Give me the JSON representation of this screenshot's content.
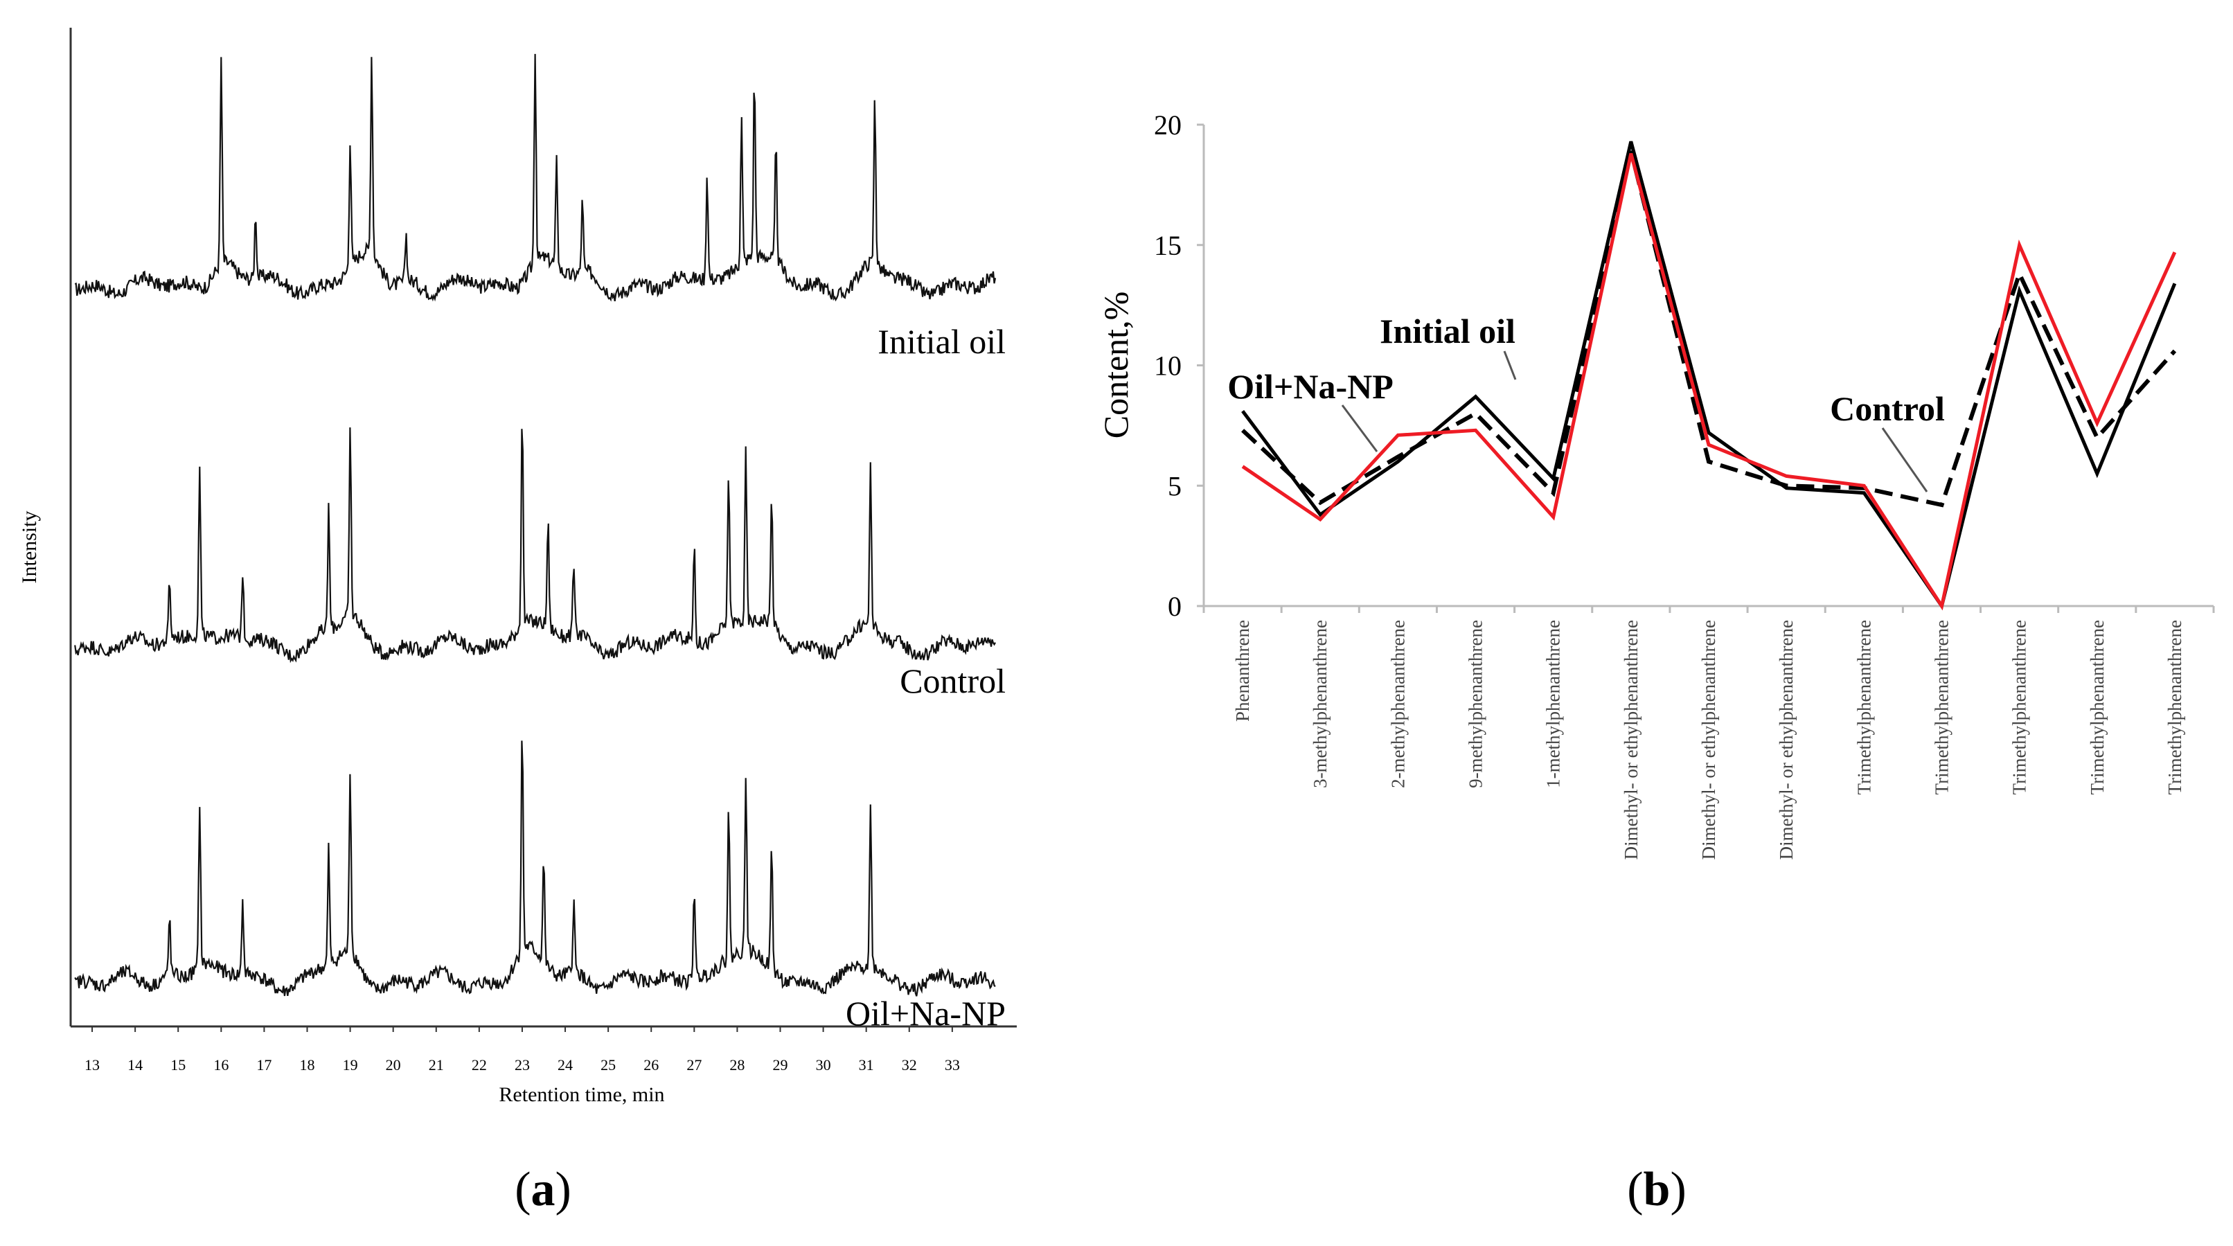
{
  "panels": {
    "a": {
      "caption_open": "(",
      "caption_letter": "a",
      "caption_close": ")"
    },
    "b": {
      "caption_open": "(",
      "caption_letter": "b",
      "caption_close": ")"
    }
  },
  "chart_data": [
    {
      "id": "a",
      "type": "line",
      "title": "",
      "xlabel": "Retention time, min",
      "ylabel": "Intensity",
      "xlim": [
        12.5,
        34.5
      ],
      "x_ticks": [
        13,
        14,
        15,
        16,
        17,
        18,
        19,
        20,
        21,
        22,
        23,
        24,
        25,
        26,
        27,
        28,
        29,
        30,
        31,
        32,
        33
      ],
      "x_tick_labels": [
        "13",
        "14",
        "15",
        "16",
        "17",
        "18",
        "19",
        "20",
        "21",
        "22",
        "23",
        "24",
        "25",
        "26",
        "27",
        "28",
        "29",
        "30",
        "31",
        "32",
        "33"
      ],
      "grid": false,
      "series": [
        {
          "name": "Initial oil",
          "peaks": [
            [
              16.0,
              0.88
            ],
            [
              16.8,
              0.28
            ],
            [
              19.0,
              0.55
            ],
            [
              19.5,
              0.85
            ],
            [
              20.3,
              0.2
            ],
            [
              23.3,
              0.9
            ],
            [
              23.8,
              0.45
            ],
            [
              24.4,
              0.3
            ],
            [
              27.3,
              0.45
            ],
            [
              28.1,
              0.62
            ],
            [
              28.4,
              0.78
            ],
            [
              28.9,
              0.5
            ],
            [
              31.2,
              0.72
            ]
          ]
        },
        {
          "name": "Control",
          "peaks": [
            [
              14.8,
              0.25
            ],
            [
              15.5,
              0.72
            ],
            [
              16.5,
              0.28
            ],
            [
              18.5,
              0.52
            ],
            [
              19.0,
              0.8
            ],
            [
              23.0,
              0.92
            ],
            [
              23.6,
              0.45
            ],
            [
              24.2,
              0.3
            ],
            [
              27.0,
              0.42
            ],
            [
              27.8,
              0.65
            ],
            [
              28.2,
              0.72
            ],
            [
              28.8,
              0.55
            ],
            [
              31.1,
              0.68
            ]
          ]
        },
        {
          "name": "Oil+Na-NP",
          "peaks": [
            [
              14.8,
              0.25
            ],
            [
              15.5,
              0.7
            ],
            [
              16.5,
              0.32
            ],
            [
              18.5,
              0.5
            ],
            [
              19.0,
              0.78
            ],
            [
              23.0,
              0.95
            ],
            [
              23.5,
              0.45
            ],
            [
              24.2,
              0.3
            ],
            [
              27.0,
              0.4
            ],
            [
              27.8,
              0.65
            ],
            [
              28.2,
              0.75
            ],
            [
              28.8,
              0.52
            ],
            [
              31.1,
              0.68
            ]
          ]
        }
      ]
    },
    {
      "id": "b",
      "type": "line",
      "title": "",
      "xlabel": "",
      "ylabel": "Content,%",
      "ylim": [
        0,
        20
      ],
      "y_ticks": [
        0,
        5,
        10,
        15,
        20
      ],
      "y_tick_labels": [
        "0",
        "5",
        "10",
        "15",
        "20"
      ],
      "grid": false,
      "categories": [
        "Phenanthrene",
        "3-methylphenanthrene",
        "2-methylphenanthrene",
        "9-methylphenanthrene",
        "1-methylphenanthrene",
        "Dimethyl- or ethylphenanthrene",
        "Dimethyl- or ethylphenanthrene",
        "Dimethyl- or ethylphenanthrene",
        "Trimethylphenanthrene",
        "Trimethylphenanthrene",
        "Trimethylphenanthrene",
        "Trimethylphenanthrene",
        "Trimethylphenanthrene"
      ],
      "series": [
        {
          "name": "Initial oil",
          "color": "#000000",
          "style": "solid",
          "values": [
            8.1,
            3.8,
            6.0,
            8.7,
            5.3,
            19.3,
            7.2,
            4.9,
            4.7,
            0.0,
            13.1,
            5.5,
            13.4
          ]
        },
        {
          "name": "Control",
          "color": "#000000",
          "style": "dashed",
          "values": [
            7.3,
            4.3,
            6.2,
            8.0,
            4.7,
            18.9,
            6.0,
            5.0,
            4.9,
            4.2,
            13.8,
            7.0,
            10.6
          ]
        },
        {
          "name": "Oil+Na-NP",
          "color": "#ee1c25",
          "style": "solid",
          "values": [
            5.8,
            3.6,
            7.1,
            7.3,
            3.7,
            18.8,
            6.7,
            5.4,
            5.0,
            0.0,
            15.0,
            7.6,
            14.7
          ]
        }
      ],
      "annotations": [
        {
          "text": "Initial oil",
          "series": "Initial oil",
          "category_index": 4
        },
        {
          "text": "Oil+Na-NP",
          "series": "Oil+Na-NP",
          "category_index": 2
        },
        {
          "text": "Control",
          "series": "Control",
          "category_index": 9
        }
      ]
    }
  ]
}
